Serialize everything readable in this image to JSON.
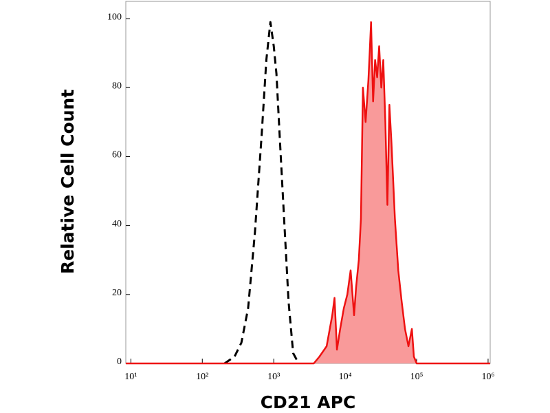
{
  "chart_data": {
    "type": "histogram-overlay",
    "x_label": "CD21 APC",
    "y_label": "Relative Cell Count",
    "xscale": "log",
    "xlim": [
      8.5,
      1070000
    ],
    "ylim": [
      0,
      105
    ],
    "xticks": [
      {
        "value": 10,
        "label": "10¹"
      },
      {
        "value": 100,
        "label": "10²"
      },
      {
        "value": 1000,
        "label": "10³"
      },
      {
        "value": 10000,
        "label": "10⁴"
      },
      {
        "value": 100000,
        "label": "10⁵"
      },
      {
        "value": 1000000,
        "label": "10⁶"
      }
    ],
    "yticks": [
      0,
      20,
      40,
      60,
      80,
      100
    ],
    "series": [
      {
        "color": "#000000",
        "style": "dashed",
        "filled": false,
        "x": [
          205,
          283,
          352,
          438,
          545,
          676,
          787,
          898,
          1000,
          1090,
          1210,
          1380,
          1610,
          1870,
          2230
        ],
        "values": [
          0,
          2,
          6,
          16,
          38,
          66,
          88,
          99,
          92,
          84,
          66,
          44,
          18,
          3,
          0
        ]
      },
      {
        "color": "#ee1111",
        "fill": "#f99a9a",
        "style": "solid",
        "filled": true,
        "x": [
          8.5,
          3630,
          4370,
          5500,
          6600,
          7100,
          7670,
          8510,
          9560,
          10700,
          11900,
          13300,
          14200,
          15500,
          16600,
          17700,
          19300,
          21100,
          22000,
          23000,
          24600,
          26200,
          28000,
          29900,
          32000,
          34100,
          36500,
          39000,
          41600,
          44400,
          49600,
          55300,
          61700,
          68800,
          76800,
          85700,
          91500,
          100000,
          1070000
        ],
        "values": [
          0,
          0,
          2,
          5,
          14,
          19,
          4,
          10,
          16,
          20,
          27,
          14,
          22,
          30,
          42,
          80,
          70,
          82,
          90,
          99,
          76,
          88,
          83,
          92,
          80,
          88,
          70,
          46,
          75,
          64,
          42,
          27,
          18,
          10,
          5,
          10,
          2,
          0,
          0
        ]
      }
    ]
  }
}
